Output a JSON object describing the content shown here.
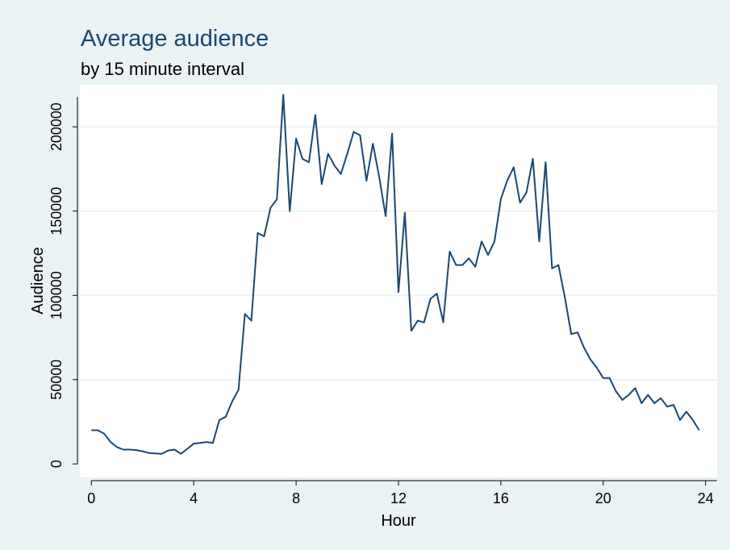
{
  "chart_data": {
    "type": "line",
    "title": "Average audience",
    "subtitle": "by 15 minute interval",
    "xlabel": "Hour",
    "ylabel": "Audience",
    "xlim": [
      -0.45,
      24.45
    ],
    "ylim": [
      -8000,
      225000
    ],
    "xticks": [
      0,
      4,
      8,
      12,
      16,
      20,
      24
    ],
    "yticks": [
      0,
      50000,
      100000,
      150000,
      200000
    ],
    "xtick_labels": [
      "0",
      "4",
      "8",
      "12",
      "16",
      "20",
      "24"
    ],
    "ytick_labels": [
      "0",
      "50000",
      "100000",
      "150000",
      "200000"
    ],
    "grid": "horizontal",
    "legend": "none",
    "colors": {
      "line": "#1a476f",
      "outer_background": "#eaf2f3",
      "plot_background": "#ffffff",
      "grid": "#eaf2f3",
      "title": "#1a476f"
    },
    "series": [
      {
        "x": [
          0,
          0.25,
          0.5,
          0.75,
          1,
          1.25,
          1.5,
          1.75,
          2,
          2.25,
          2.5,
          2.75,
          3,
          3.25,
          3.5,
          3.75,
          4,
          4.25,
          4.5,
          4.75,
          5,
          5.25,
          5.5,
          5.75,
          6,
          6.25,
          6.5,
          6.75,
          7,
          7.25,
          7.5,
          7.75,
          8,
          8.25,
          8.5,
          8.75,
          9,
          9.25,
          9.5,
          9.75,
          10,
          10.25,
          10.5,
          10.75,
          11,
          11.25,
          11.5,
          11.75,
          12,
          12.25,
          12.5,
          12.75,
          13,
          13.25,
          13.5,
          13.75,
          14,
          14.25,
          14.5,
          14.75,
          15,
          15.25,
          15.5,
          15.75,
          16,
          16.25,
          16.5,
          16.75,
          17,
          17.25,
          17.5,
          17.75,
          18,
          18.25,
          18.5,
          18.75,
          19,
          19.25,
          19.5,
          19.75,
          20,
          20.25,
          20.5,
          20.75,
          21,
          21.25,
          21.5,
          21.75,
          22,
          22.25,
          22.5,
          22.75,
          23,
          23.25,
          23.5,
          23.75
        ],
        "values": [
          20000,
          20000,
          18000,
          13000,
          10000,
          8500,
          8500,
          8200,
          7500,
          6500,
          6200,
          6000,
          8000,
          8500,
          6000,
          9000,
          12000,
          12500,
          13000,
          12500,
          26000,
          28000,
          37000,
          44000,
          89000,
          85000,
          137000,
          135000,
          152000,
          157000,
          219000,
          150000,
          193000,
          181000,
          179000,
          207000,
          166000,
          184000,
          177000,
          172000,
          184000,
          197000,
          195000,
          168000,
          190000,
          170000,
          147000,
          196000,
          102000,
          149000,
          79000,
          85000,
          84000,
          98000,
          101000,
          84000,
          126000,
          118000,
          118000,
          122000,
          117000,
          132000,
          124000,
          132000,
          157000,
          168000,
          176000,
          155000,
          161000,
          181000,
          132000,
          179000,
          116000,
          118000,
          99000,
          77000,
          78000,
          69000,
          62000,
          57000,
          51000,
          51000,
          43000,
          38000,
          41000,
          45000,
          36000,
          41000,
          36000,
          39000,
          34000,
          35000,
          26000,
          31000,
          26000,
          20000
        ]
      }
    ]
  }
}
